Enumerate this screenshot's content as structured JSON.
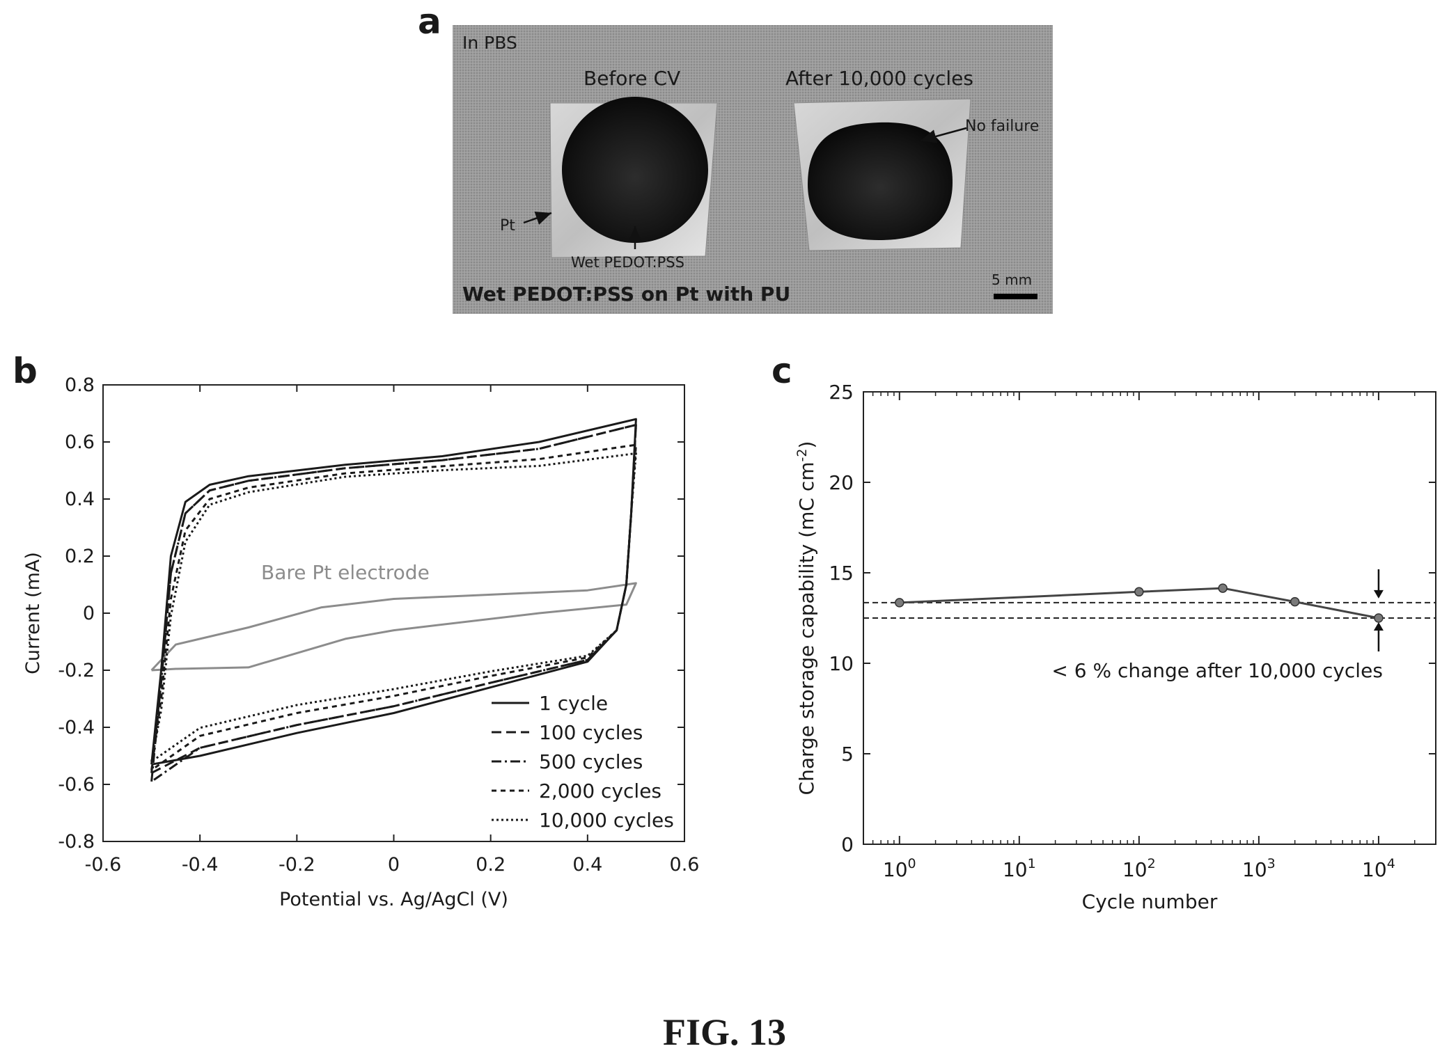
{
  "figure_label": "FIG. 13",
  "panel_a": {
    "letter": "a",
    "medium": "In PBS",
    "before_label": "Before CV",
    "after_label": "After 10,000 cycles",
    "pt_label": "Pt",
    "wet_label": "Wet PEDOT:PSS",
    "no_failure_label": "No failure",
    "title": "Wet PEDOT:PSS on Pt with PU",
    "scale_label": "5 mm"
  },
  "chart_data": [
    {
      "panel": "b",
      "type": "line",
      "xlabel": "Potential vs. Ag/AgCl (V)",
      "ylabel": "Current (mA)",
      "xlim": [
        -0.6,
        0.6
      ],
      "ylim": [
        -0.8,
        0.8
      ],
      "xticks": [
        "-0.6",
        "-0.4",
        "-0.2",
        "0",
        "0.2",
        "0.4",
        "0.6"
      ],
      "yticks": [
        "0.8",
        "0.6",
        "0.4",
        "0.2",
        "0",
        "-0.2",
        "-0.4",
        "-0.6",
        "-0.8"
      ],
      "annotation": "Bare Pt electrode",
      "legend_position": "bottom-right",
      "series": [
        {
          "name": "1 cycle",
          "style": "solid",
          "upper_end": 0.68,
          "lower_start": -0.53
        },
        {
          "name": "100 cycles",
          "style": "dashed",
          "upper_end": 0.66,
          "lower_start": -0.56
        },
        {
          "name": "500 cycles",
          "style": "dashdot",
          "upper_end": 0.66,
          "lower_start": -0.59
        },
        {
          "name": "2,000 cycles",
          "style": "shortdash",
          "upper_end": 0.59,
          "lower_start": -0.55
        },
        {
          "name": "10,000 cycles",
          "style": "dotted",
          "upper_end": 0.56,
          "lower_start": -0.52
        }
      ],
      "bare_pt": {
        "forward": [
          [
            -0.5,
            -0.2
          ],
          [
            -0.45,
            -0.11
          ],
          [
            -0.3,
            -0.05
          ],
          [
            -0.15,
            0.02
          ],
          [
            0.0,
            0.05
          ],
          [
            0.2,
            0.065
          ],
          [
            0.4,
            0.08
          ],
          [
            0.5,
            0.105
          ]
        ],
        "reverse": [
          [
            0.5,
            0.105
          ],
          [
            0.48,
            0.03
          ],
          [
            0.3,
            0.0
          ],
          [
            0.0,
            -0.06
          ],
          [
            -0.1,
            -0.09
          ],
          [
            -0.2,
            -0.14
          ],
          [
            -0.3,
            -0.19
          ],
          [
            -0.45,
            -0.195
          ],
          [
            -0.5,
            -0.2
          ]
        ]
      }
    },
    {
      "panel": "c",
      "type": "line",
      "xscale": "log",
      "xlabel": "Cycle number",
      "ylabel": "Charge storage capability (mC cm",
      "ylabel_sup": "-2",
      "ylabel_end": ")",
      "xlim": [
        0.5,
        30000
      ],
      "ylim": [
        0,
        25
      ],
      "yticks": [
        "25",
        "20",
        "15",
        "10",
        "5",
        "0"
      ],
      "xticks": [
        {
          "base": "10",
          "exp": "0"
        },
        {
          "base": "10",
          "exp": "1"
        },
        {
          "base": "10",
          "exp": "2"
        },
        {
          "base": "10",
          "exp": "3"
        },
        {
          "base": "10",
          "exp": "4"
        }
      ],
      "x": [
        1,
        100,
        500,
        2000,
        10000
      ],
      "y": [
        13.35,
        13.95,
        14.15,
        13.4,
        12.5
      ],
      "reference_lines": [
        13.35,
        12.5
      ],
      "annotation": "< 6 % change after 10,000 cycles"
    }
  ]
}
